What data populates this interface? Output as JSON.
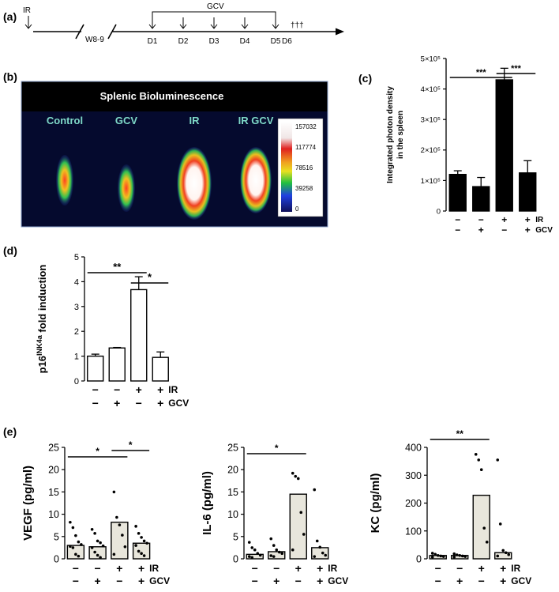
{
  "panels": {
    "a": "(a)",
    "b": "(b)",
    "c": "(c)",
    "d": "(d)",
    "e": "(e)"
  },
  "timeline": {
    "ir_label": "IR",
    "week_label": "W8-9",
    "gcv_label": "GCV",
    "days": [
      "D1",
      "D2",
      "D3",
      "D4",
      "D5"
    ],
    "end_day": "D6",
    "death_mark": "†††"
  },
  "bioluminescence": {
    "title": "Splenic Bioluminescence",
    "groups": [
      "Control",
      "GCV",
      "IR",
      "IR GCV"
    ],
    "scale_ticks": [
      "157032",
      "117774",
      "78516",
      "39258",
      "0"
    ],
    "colors": {
      "background": "#050a2e",
      "label": "#7fd9c8",
      "title": "#ffffff"
    }
  },
  "conditions": {
    "ir": [
      "−",
      "−",
      "+",
      "+"
    ],
    "gcv": [
      "−",
      "+",
      "−",
      "+"
    ],
    "ir_label": "IR",
    "gcv_label": "GCV"
  },
  "chart_data": [
    {
      "id": "c",
      "type": "bar",
      "ylabel": "Integrated photon density in the spleen",
      "ylim": [
        0,
        500000
      ],
      "yticks": [
        0,
        100000,
        200000,
        300000,
        400000,
        500000
      ],
      "ytick_labels": [
        "0",
        "1×10⁵",
        "2×10⁵",
        "3×10⁵",
        "4×10⁵",
        "5×10⁵"
      ],
      "values": [
        120000,
        80000,
        430000,
        125000
      ],
      "errors": [
        12000,
        30000,
        38000,
        40000
      ],
      "bar_color": "#000000",
      "significance": [
        {
          "from": 0,
          "to": 2,
          "label": "***"
        },
        {
          "from": 2,
          "to": 3,
          "label": "***"
        }
      ]
    },
    {
      "id": "d",
      "type": "bar",
      "ylabel": "p16INK4a fold induction",
      "ylabel_parts": [
        "p16",
        "INK4a",
        "fold induction"
      ],
      "ylim": [
        0,
        5
      ],
      "yticks": [
        0,
        1,
        2,
        3,
        4,
        5
      ],
      "ytick_labels": [
        "0",
        "1",
        "2",
        "3",
        "4",
        "5"
      ],
      "values": [
        1.0,
        1.33,
        3.68,
        0.95
      ],
      "errors": [
        0.08,
        0.02,
        0.52,
        0.22
      ],
      "bar_color": "#ffffff",
      "significance": [
        {
          "from": 0,
          "to": 2,
          "label": "**"
        },
        {
          "from": 2,
          "to": 3,
          "label": "*"
        }
      ]
    },
    {
      "id": "e1",
      "type": "bar",
      "ylabel": "VEGF (pg/ml)",
      "ylim": [
        0,
        25
      ],
      "yticks": [
        0,
        5,
        10,
        15,
        20,
        25
      ],
      "ytick_labels": [
        "0",
        "5",
        "10",
        "15",
        "20",
        "25"
      ],
      "values": [
        3.0,
        2.7,
        8.2,
        3.5
      ],
      "points": [
        [
          8.2,
          7.0,
          5.2,
          3.8,
          3.2,
          2.8,
          2.5,
          1.0,
          0.6
        ],
        [
          6.6,
          5.7,
          4.0,
          3.6,
          2.9,
          2.5,
          1.5,
          0.8,
          0.3
        ],
        [
          15.0,
          9.3,
          7.6,
          5.3,
          2.7,
          1.0
        ],
        [
          7.3,
          5.7,
          4.8,
          4.0,
          3.5,
          3.0,
          1.7,
          1.2,
          0.7
        ]
      ],
      "bar_color": "#e8e6dc",
      "significance": [
        {
          "from": 0,
          "to": 2,
          "label": "*"
        },
        {
          "from": 2,
          "to": 3,
          "label": "*"
        }
      ]
    },
    {
      "id": "e2",
      "type": "bar",
      "ylabel": "IL-6 (pg/ml)",
      "ylim": [
        0,
        25
      ],
      "yticks": [
        0,
        5,
        10,
        15,
        20,
        25
      ],
      "ytick_labels": [
        "0",
        "5",
        "10",
        "15",
        "20",
        "25"
      ],
      "values": [
        1.0,
        1.6,
        14.5,
        2.5
      ],
      "points": [
        [
          3.7,
          2.5,
          2.0,
          1.2,
          0.8,
          0.5,
          0.3
        ],
        [
          4.5,
          3.0,
          2.0,
          1.5,
          1.2,
          0.7,
          0.5
        ],
        [
          19.2,
          18.5,
          18.0,
          10.4,
          5.5,
          2.0
        ],
        [
          15.5,
          4.0,
          2.6,
          1.3,
          0.8,
          0.5
        ]
      ],
      "bar_color": "#e8e6dc",
      "significance": [
        {
          "from": 0,
          "to": 2,
          "label": "*"
        }
      ]
    },
    {
      "id": "e3",
      "type": "bar",
      "ylabel": "KC (pg/ml)",
      "ylim": [
        0,
        400
      ],
      "yticks": [
        0,
        100,
        200,
        300,
        400
      ],
      "ytick_labels": [
        "0",
        "100",
        "200",
        "300",
        "400"
      ],
      "values": [
        12,
        12,
        228,
        22
      ],
      "points": [
        [
          20,
          16,
          12,
          10,
          8,
          6
        ],
        [
          18,
          14,
          12,
          10,
          8,
          6
        ],
        [
          375,
          355,
          320,
          110,
          60
        ],
        [
          355,
          125,
          30,
          22,
          15,
          10
        ]
      ],
      "bar_color": "#e8e6dc",
      "significance": [
        {
          "from": 0,
          "to": 2,
          "label": "**"
        }
      ]
    }
  ]
}
